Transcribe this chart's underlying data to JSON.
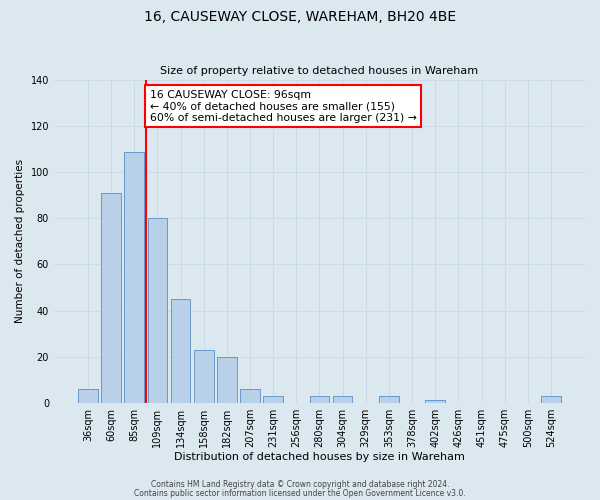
{
  "title": "16, CAUSEWAY CLOSE, WAREHAM, BH20 4BE",
  "subtitle": "Size of property relative to detached houses in Wareham",
  "xlabel": "Distribution of detached houses by size in Wareham",
  "ylabel": "Number of detached properties",
  "bar_labels": [
    "36sqm",
    "60sqm",
    "85sqm",
    "109sqm",
    "134sqm",
    "158sqm",
    "182sqm",
    "207sqm",
    "231sqm",
    "256sqm",
    "280sqm",
    "304sqm",
    "329sqm",
    "353sqm",
    "378sqm",
    "402sqm",
    "426sqm",
    "451sqm",
    "475sqm",
    "500sqm",
    "524sqm"
  ],
  "bar_heights": [
    6,
    91,
    109,
    80,
    45,
    23,
    20,
    6,
    3,
    0,
    3,
    3,
    0,
    3,
    0,
    1,
    0,
    0,
    0,
    0,
    3
  ],
  "bar_color": "#b8d0e8",
  "bar_edge_color": "#6699cc",
  "annotation_box_text": "16 CAUSEWAY CLOSE: 96sqm\n← 40% of detached houses are smaller (155)\n60% of semi-detached houses are larger (231) →",
  "annotation_box_color": "white",
  "annotation_box_edge_color": "red",
  "vline_color": "red",
  "ylim": [
    0,
    140
  ],
  "yticks": [
    0,
    20,
    40,
    60,
    80,
    100,
    120,
    140
  ],
  "grid_color": "#c8d8e8",
  "background_color": "#dce8f0",
  "footer_line1": "Contains HM Land Registry data © Crown copyright and database right 2024.",
  "footer_line2": "Contains public sector information licensed under the Open Government Licence v3.0."
}
